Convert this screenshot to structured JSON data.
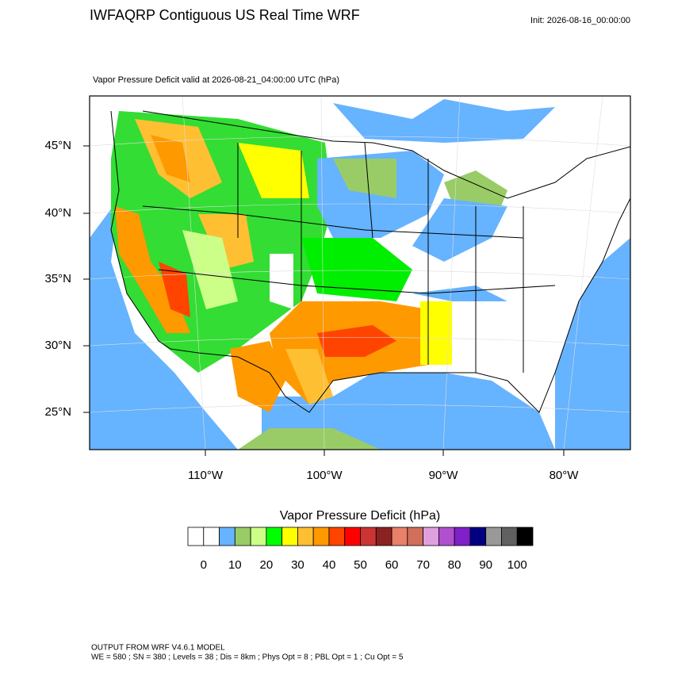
{
  "header": {
    "title": "IWFAQRP Contiguous US Real Time WRF",
    "init": "Init: 2026-08-16_00:00:00"
  },
  "map": {
    "subtitle": "Vapor Pressure Deficit valid at 2026-08-21_04:00:00 UTC   (hPa)",
    "lat_labels": [
      "45°N",
      "40°N",
      "35°N",
      "30°N",
      "25°N"
    ],
    "lon_labels": [
      "110°W",
      "100°W",
      "90°W",
      "80°W"
    ]
  },
  "colorbar": {
    "title": "Vapor Pressure Deficit  (hPa)",
    "colors": [
      "#ffffff",
      "#ffffff",
      "#66b3ff",
      "#99cc66",
      "#ccff88",
      "#00ff00",
      "#ffff00",
      "#ffbf33",
      "#ff9900",
      "#ff4400",
      "#ff0000",
      "#cc3333",
      "#8b2222",
      "#e8806a",
      "#d0705a",
      "#e0a0e0",
      "#b050d0",
      "#8020c8",
      "#000080",
      "#999999",
      "#606060",
      "#000000"
    ],
    "labels": [
      "0",
      "10",
      "20",
      "30",
      "40",
      "50",
      "60",
      "70",
      "80",
      "90",
      "100"
    ]
  },
  "footer": {
    "lines": [
      "OUTPUT FROM WRF V4.6.1 MODEL",
      "WE = 580 ; SN = 380 ; Levels = 38 ; Dis = 8km ; Phys Opt = 8 ; PBL Opt = 1 ; Cu Opt = 5"
    ]
  }
}
